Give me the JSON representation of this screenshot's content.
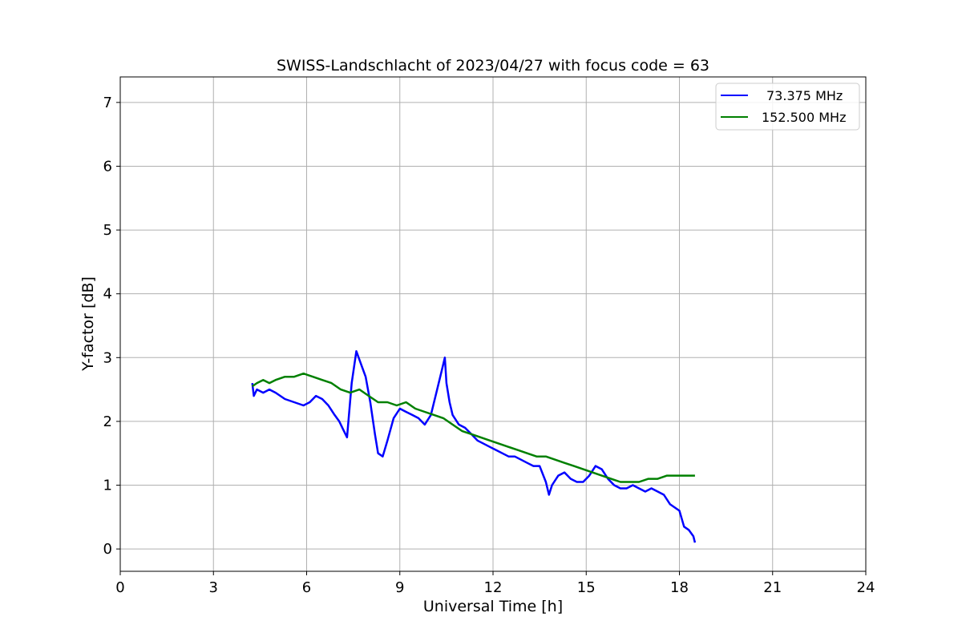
{
  "chart_data": {
    "type": "line",
    "title": "SWISS-Landschlacht of 2023/04/27 with focus code = 63",
    "xlabel": "Universal Time [h]",
    "ylabel": "Y-factor [dB]",
    "xlim": [
      0,
      24
    ],
    "ylim": [
      -0.35,
      7.4
    ],
    "xticks": [
      0,
      3,
      6,
      9,
      12,
      15,
      18,
      21,
      24
    ],
    "yticks": [
      0,
      1,
      2,
      3,
      4,
      5,
      6,
      7
    ],
    "grid": true,
    "legend_position": "top-right",
    "series": [
      {
        "name": "73.375 MHz",
        "color": "#0000ff",
        "x": [
          4.25,
          4.3,
          4.4,
          4.6,
          4.8,
          5.0,
          5.3,
          5.6,
          5.9,
          6.1,
          6.3,
          6.5,
          6.7,
          6.9,
          7.05,
          7.2,
          7.3,
          7.45,
          7.6,
          7.75,
          7.9,
          8.05,
          8.2,
          8.3,
          8.45,
          8.6,
          8.8,
          9.0,
          9.2,
          9.4,
          9.6,
          9.8,
          10.0,
          10.2,
          10.35,
          10.45,
          10.5,
          10.6,
          10.7,
          10.9,
          11.1,
          11.3,
          11.5,
          11.7,
          11.9,
          12.1,
          12.3,
          12.5,
          12.7,
          12.9,
          13.1,
          13.3,
          13.5,
          13.7,
          13.8,
          13.9,
          14.1,
          14.3,
          14.5,
          14.7,
          14.9,
          15.1,
          15.3,
          15.5,
          15.7,
          15.9,
          16.1,
          16.3,
          16.5,
          16.7,
          16.9,
          17.1,
          17.3,
          17.5,
          17.7,
          17.85,
          18.0,
          18.15,
          18.3,
          18.45,
          18.5
        ],
        "y": [
          2.6,
          2.4,
          2.5,
          2.45,
          2.5,
          2.45,
          2.35,
          2.3,
          2.25,
          2.3,
          2.4,
          2.35,
          2.25,
          2.1,
          2.0,
          1.85,
          1.75,
          2.6,
          3.1,
          2.9,
          2.7,
          2.3,
          1.8,
          1.5,
          1.45,
          1.7,
          2.05,
          2.2,
          2.15,
          2.1,
          2.05,
          1.95,
          2.1,
          2.5,
          2.8,
          3.0,
          2.6,
          2.3,
          2.1,
          1.95,
          1.9,
          1.8,
          1.7,
          1.65,
          1.6,
          1.55,
          1.5,
          1.45,
          1.45,
          1.4,
          1.35,
          1.3,
          1.3,
          1.05,
          0.85,
          1.0,
          1.15,
          1.2,
          1.1,
          1.05,
          1.05,
          1.15,
          1.3,
          1.25,
          1.1,
          1.0,
          0.95,
          0.95,
          1.0,
          0.95,
          0.9,
          0.95,
          0.9,
          0.85,
          0.7,
          0.65,
          0.6,
          0.35,
          0.3,
          0.2,
          0.1
        ]
      },
      {
        "name": "152.500 MHz",
        "color": "#008000",
        "x": [
          4.25,
          4.4,
          4.6,
          4.8,
          5.0,
          5.3,
          5.6,
          5.9,
          6.2,
          6.5,
          6.8,
          7.1,
          7.4,
          7.7,
          8.0,
          8.3,
          8.6,
          8.9,
          9.2,
          9.5,
          9.8,
          10.1,
          10.4,
          10.7,
          11.0,
          11.3,
          11.6,
          11.9,
          12.2,
          12.5,
          12.8,
          13.1,
          13.4,
          13.7,
          14.0,
          14.3,
          14.6,
          14.9,
          15.2,
          15.5,
          15.8,
          16.1,
          16.4,
          16.7,
          17.0,
          17.3,
          17.6,
          17.9,
          18.2,
          18.5
        ],
        "y": [
          2.55,
          2.6,
          2.65,
          2.6,
          2.65,
          2.7,
          2.7,
          2.75,
          2.7,
          2.65,
          2.6,
          2.5,
          2.45,
          2.5,
          2.4,
          2.3,
          2.3,
          2.25,
          2.3,
          2.2,
          2.15,
          2.1,
          2.05,
          1.95,
          1.85,
          1.8,
          1.75,
          1.7,
          1.65,
          1.6,
          1.55,
          1.5,
          1.45,
          1.45,
          1.4,
          1.35,
          1.3,
          1.25,
          1.2,
          1.15,
          1.1,
          1.05,
          1.05,
          1.05,
          1.1,
          1.1,
          1.15,
          1.15,
          1.15,
          1.15
        ]
      }
    ]
  }
}
